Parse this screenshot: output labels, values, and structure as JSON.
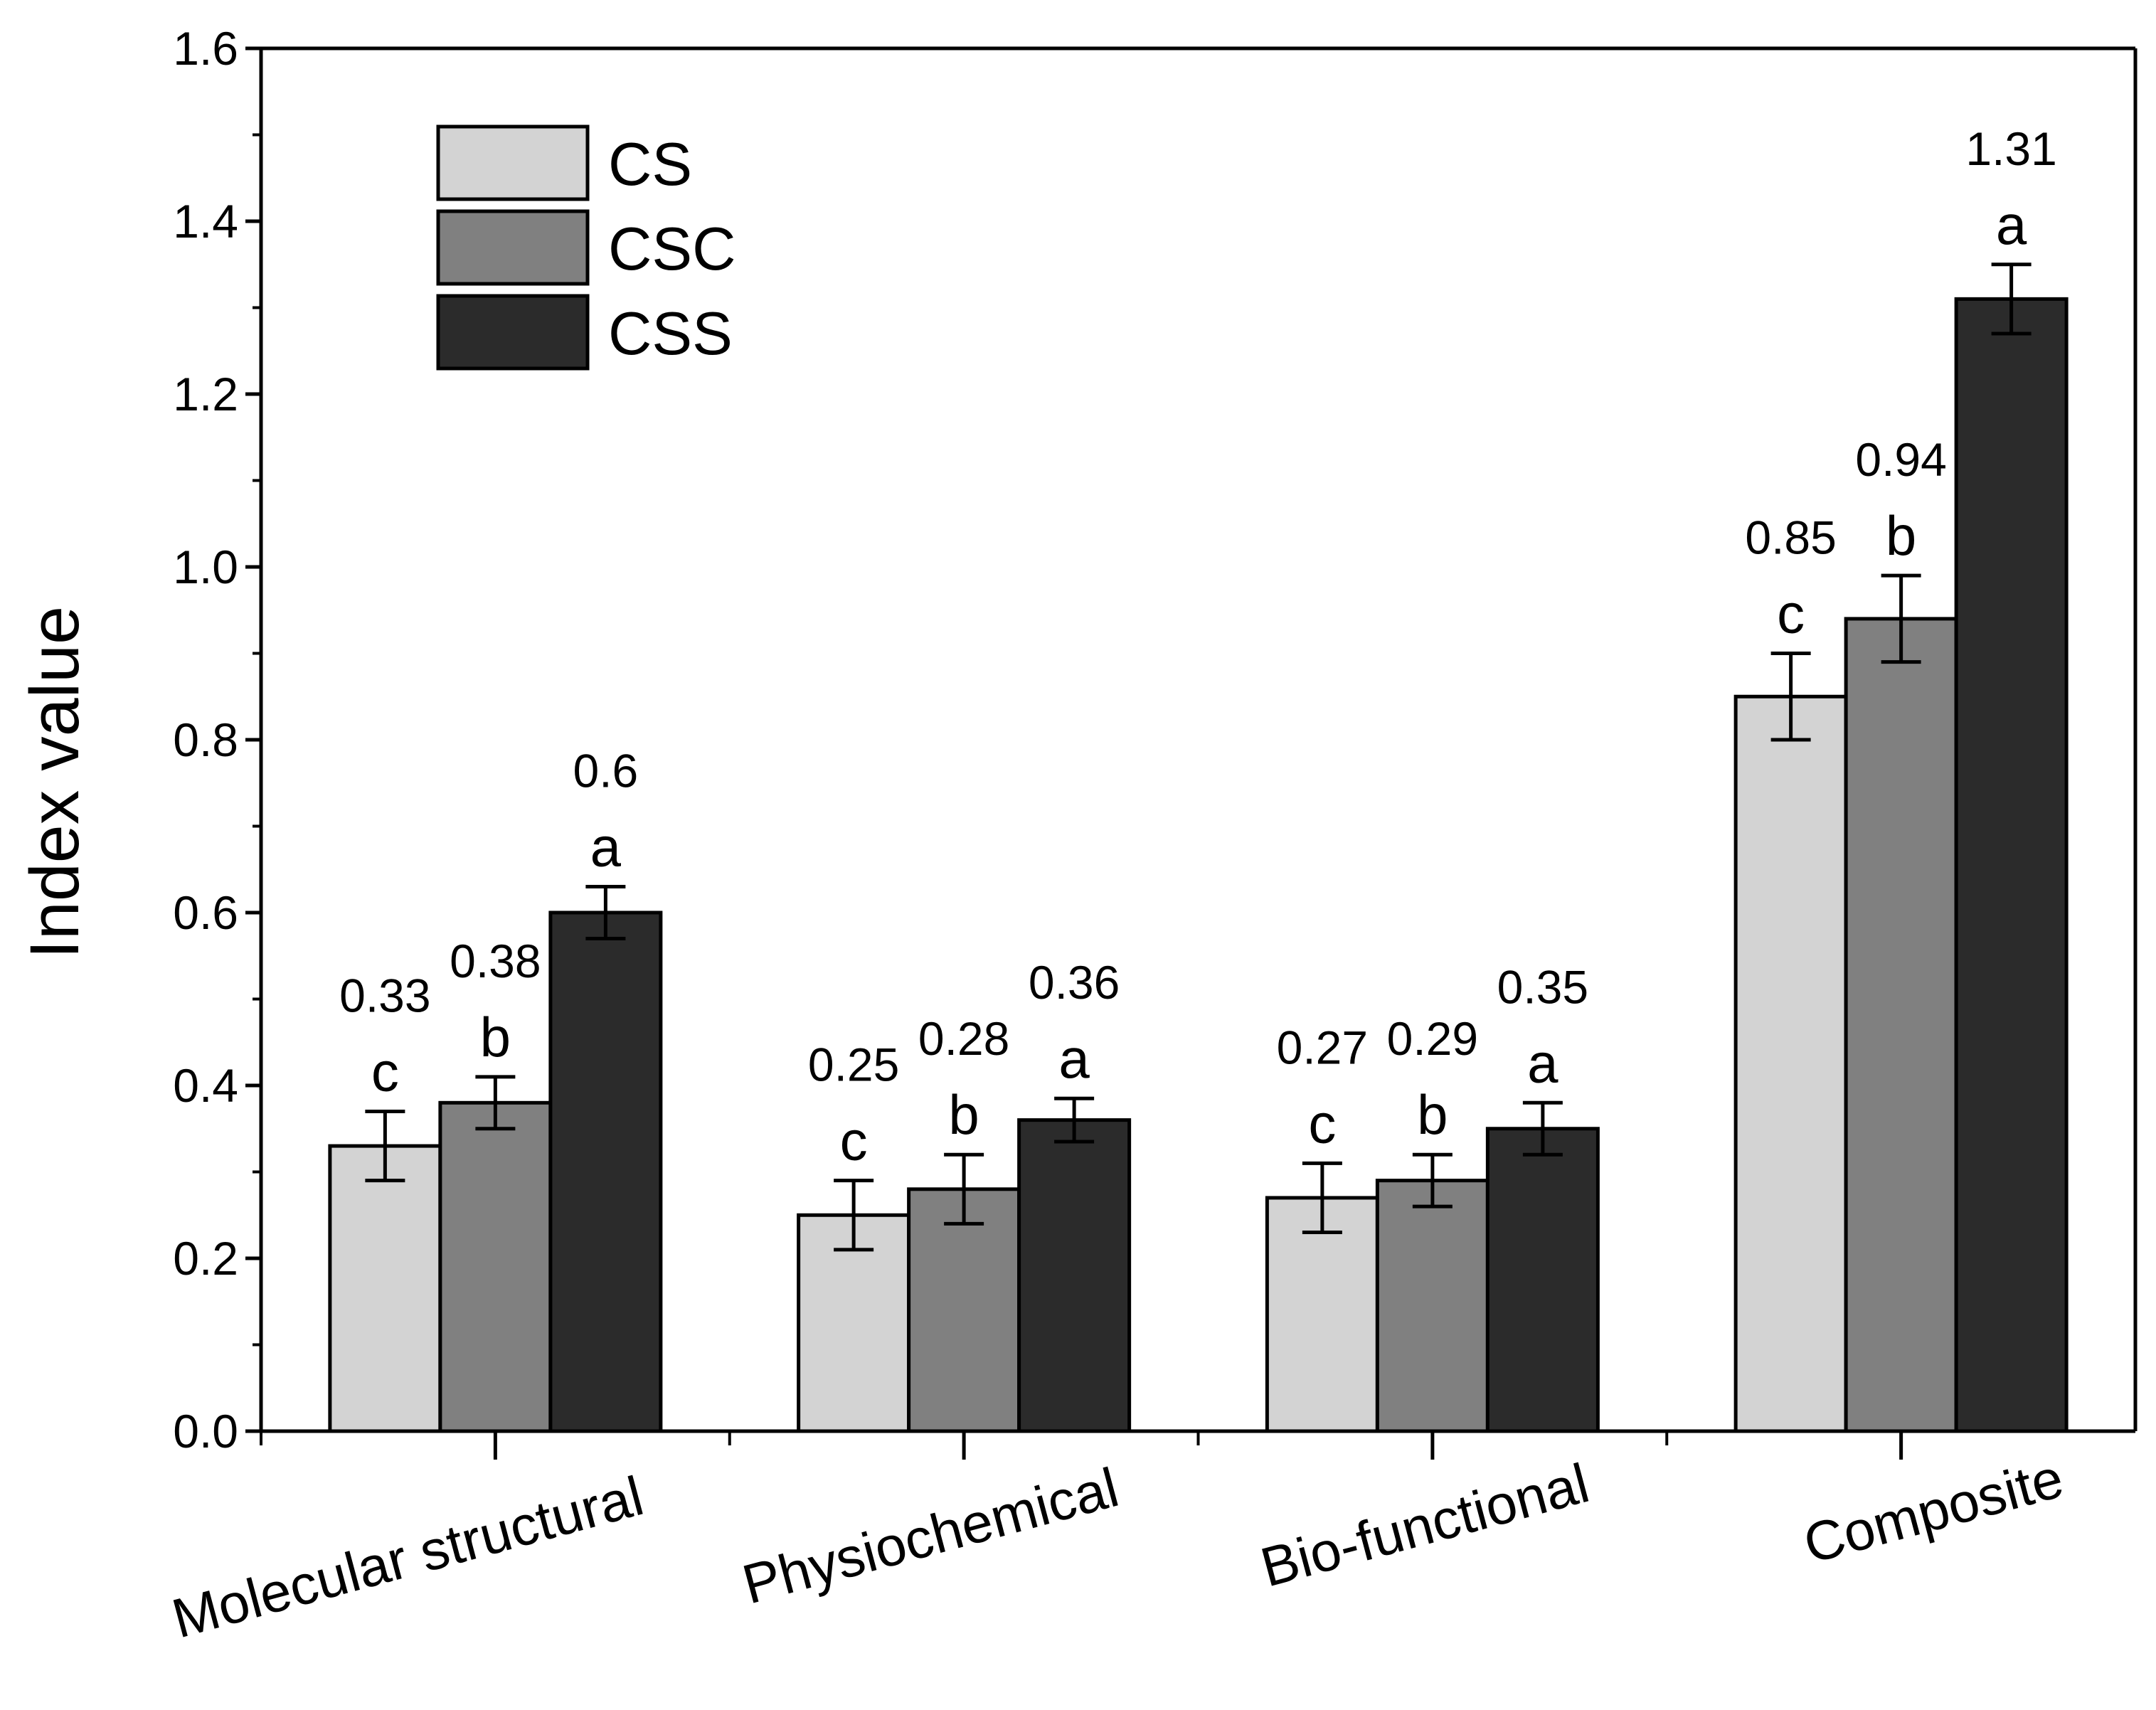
{
  "chart_data": {
    "type": "bar",
    "title": "",
    "xlabel": "",
    "ylabel": "Index value",
    "ylim": [
      0,
      1.6
    ],
    "yticks": [
      "0.0",
      "0.2",
      "0.4",
      "0.6",
      "0.8",
      "1.0",
      "1.2",
      "1.4",
      "1.6"
    ],
    "grid": false,
    "legend_position": "top-left",
    "categories": [
      "Molecular structural",
      "Physiochemical",
      "Bio-functional",
      "Composite"
    ],
    "series": [
      {
        "name": "CS",
        "color": "#d3d3d3",
        "values": [
          0.33,
          0.25,
          0.27,
          0.85
        ],
        "errors": [
          0.04,
          0.04,
          0.04,
          0.05
        ],
        "letters": [
          "c",
          "c",
          "c",
          "c"
        ],
        "labels": [
          "0.33",
          "0.25",
          "0.27",
          "0.85"
        ]
      },
      {
        "name": "CSC",
        "color": "#808080",
        "values": [
          0.38,
          0.28,
          0.29,
          0.94
        ],
        "errors": [
          0.03,
          0.04,
          0.03,
          0.05
        ],
        "letters": [
          "b",
          "b",
          "b",
          "b"
        ],
        "labels": [
          "0.38",
          "0.28",
          "0.29",
          "0.94"
        ]
      },
      {
        "name": "CSS",
        "color": "#2b2b2b",
        "values": [
          0.6,
          0.36,
          0.35,
          1.31
        ],
        "errors": [
          0.03,
          0.025,
          0.03,
          0.04
        ],
        "letters": [
          "a",
          "a",
          "a",
          "a"
        ],
        "labels": [
          "0.6",
          "0.36",
          "0.35",
          "1.31"
        ]
      }
    ]
  }
}
